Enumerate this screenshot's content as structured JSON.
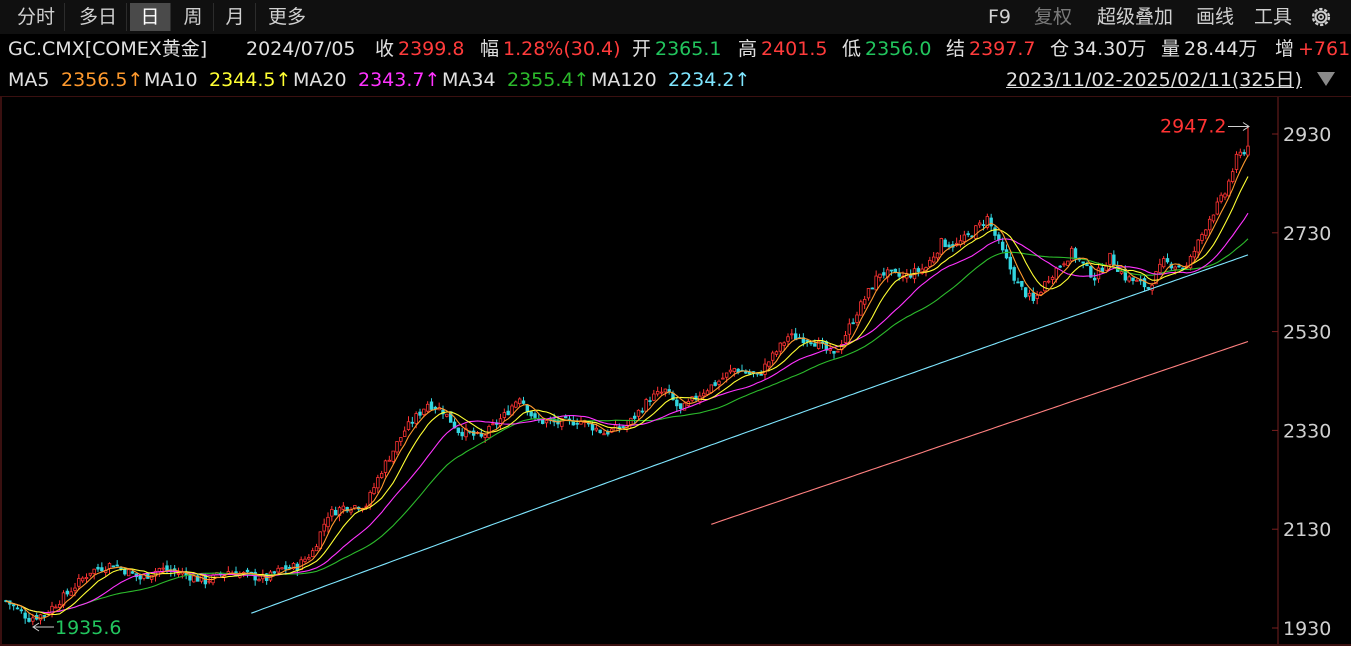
{
  "toolbar": {
    "periods": [
      {
        "label": "分时",
        "active": false
      },
      {
        "label": "多日",
        "active": false
      },
      {
        "label": "日",
        "active": true
      },
      {
        "label": "周",
        "active": false
      },
      {
        "label": "月",
        "active": false
      },
      {
        "label": "更多",
        "active": false
      }
    ],
    "f9": "F9",
    "fuquan": "复权",
    "overlay": "超级叠加",
    "draw": "画线",
    "tools": "工具"
  },
  "quote": {
    "symbol": "GC.CMX[COMEX黄金]",
    "date": "2024/07/05",
    "close_label": "收",
    "close": "2399.8",
    "change_label": "幅",
    "change": "1.28%(30.4)",
    "open_label": "开",
    "open": "2365.1",
    "high_label": "高",
    "high": "2401.5",
    "low_label": "低",
    "low": "2356.0",
    "settle_label": "结",
    "settle": "2397.7",
    "oi_label": "仓",
    "oi": "34.30万",
    "volume_label": "量",
    "volume": "28.44万",
    "increase_label": "增",
    "increase": "+761"
  },
  "ma_bar": {
    "items": [
      {
        "label": "MA5",
        "value": "2356.5↑",
        "color": "#ff9a2e"
      },
      {
        "label": "MA10",
        "value": "2344.5↑",
        "color": "#ffff33"
      },
      {
        "label": "MA20",
        "value": "2343.7↑",
        "color": "#ff33ff"
      },
      {
        "label": "MA34",
        "value": "2355.4↑",
        "color": "#2cbb2c"
      },
      {
        "label": "MA120",
        "value": "2234.2↑",
        "color": "#7fe6ff"
      }
    ],
    "range": "2023/11/02-2025/02/11(325日)"
  },
  "colors": {
    "up": "#ff3333",
    "down": "#33d6e0",
    "green": "#22c55e",
    "ma250": "#ff8080",
    "grid": "#3a1010"
  },
  "chart_data": {
    "type": "candlestick",
    "x_range": [
      "2023/11/02",
      "2025/02/11"
    ],
    "ylim": [
      1930,
      2950
    ],
    "y_ticks": [
      "2930",
      "2730",
      "2530",
      "2330",
      "2130",
      "1930"
    ],
    "max_label": "2947.2",
    "min_label": "1935.6",
    "close_anchors": [
      [
        0,
        1985
      ],
      [
        6,
        1950
      ],
      [
        10,
        1958
      ],
      [
        16,
        2000
      ],
      [
        22,
        2045
      ],
      [
        28,
        2060
      ],
      [
        35,
        2030
      ],
      [
        40,
        2050
      ],
      [
        46,
        2040
      ],
      [
        52,
        2025
      ],
      [
        58,
        2045
      ],
      [
        64,
        2035
      ],
      [
        68,
        2030
      ],
      [
        72,
        2050
      ],
      [
        76,
        2055
      ],
      [
        80,
        2085
      ],
      [
        84,
        2160
      ],
      [
        88,
        2175
      ],
      [
        94,
        2180
      ],
      [
        98,
        2250
      ],
      [
        104,
        2330
      ],
      [
        110,
        2385
      ],
      [
        114,
        2370
      ],
      [
        118,
        2330
      ],
      [
        124,
        2315
      ],
      [
        130,
        2360
      ],
      [
        134,
        2400
      ],
      [
        138,
        2350
      ],
      [
        144,
        2345
      ],
      [
        150,
        2350
      ],
      [
        156,
        2325
      ],
      [
        162,
        2340
      ],
      [
        168,
        2395
      ],
      [
        172,
        2410
      ],
      [
        176,
        2370
      ],
      [
        182,
        2410
      ],
      [
        186,
        2430
      ],
      [
        190,
        2455
      ],
      [
        196,
        2440
      ],
      [
        204,
        2520
      ],
      [
        210,
        2515
      ],
      [
        216,
        2480
      ],
      [
        222,
        2570
      ],
      [
        228,
        2650
      ],
      [
        234,
        2640
      ],
      [
        240,
        2660
      ],
      [
        244,
        2710
      ],
      [
        248,
        2705
      ],
      [
        252,
        2730
      ],
      [
        256,
        2760
      ],
      [
        260,
        2690
      ],
      [
        264,
        2625
      ],
      [
        268,
        2590
      ],
      [
        272,
        2640
      ],
      [
        278,
        2690
      ],
      [
        284,
        2640
      ],
      [
        288,
        2680
      ],
      [
        292,
        2640
      ],
      [
        298,
        2620
      ],
      [
        302,
        2670
      ],
      [
        308,
        2660
      ],
      [
        314,
        2760
      ],
      [
        318,
        2810
      ],
      [
        321,
        2880
      ],
      [
        324,
        2905
      ]
    ]
  }
}
